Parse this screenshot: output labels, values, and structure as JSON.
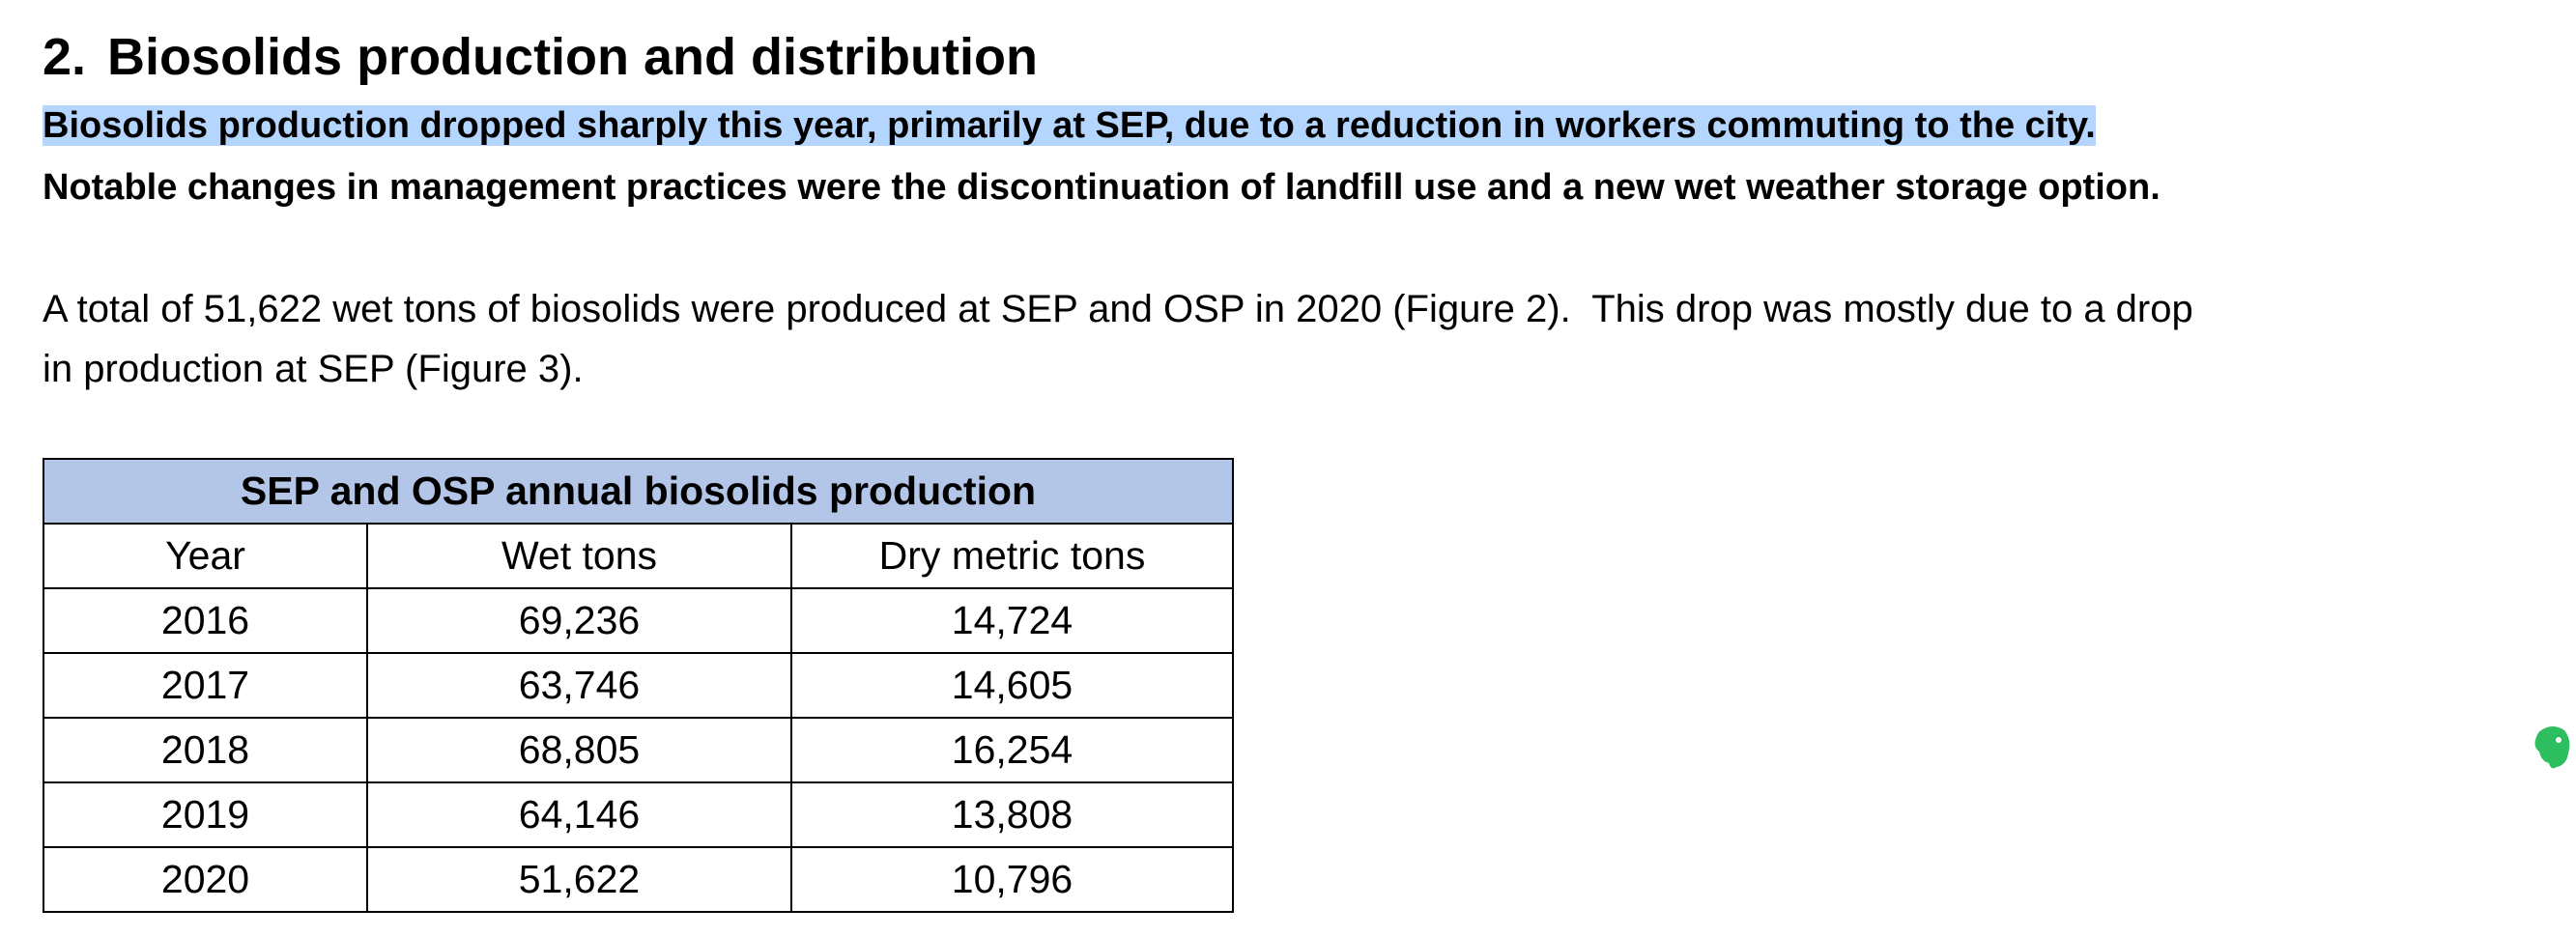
{
  "heading": {
    "number": "2.",
    "title": "Biosolids production and distribution"
  },
  "summary_lines": [
    "Biosolids production dropped sharply this year, primarily at SEP, due to a reduction in workers commuting to the city.",
    "Notable changes in management practices were the discontinuation of landfill use and a new wet weather storage option."
  ],
  "paragraph_lines": [
    "A total of 51,622 wet tons of biosolids were produced at SEP and OSP in 2020 (Figure 2).  This drop was mostly due to a drop",
    "in production at SEP (Figure 3)."
  ],
  "table": {
    "caption": "SEP and OSP annual biosolids production",
    "columns": [
      "Year",
      "Wet tons",
      "Dry metric tons"
    ],
    "rows": [
      [
        "2016",
        "69,236",
        "14,724"
      ],
      [
        "2017",
        "63,746",
        "14,605"
      ],
      [
        "2018",
        "68,805",
        "16,254"
      ],
      [
        "2019",
        "64,146",
        "13,808"
      ],
      [
        "2020",
        "51,622",
        "10,796"
      ]
    ]
  }
}
